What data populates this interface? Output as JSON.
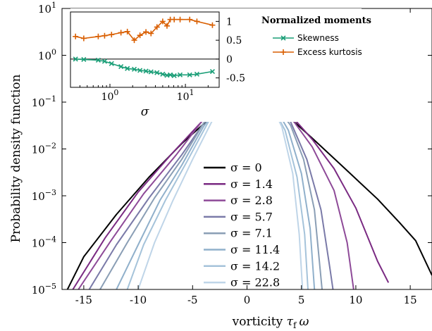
{
  "chart_data": [
    {
      "type": "line",
      "ylabel": "Probability density function",
      "xlabel_text": "vorticity ",
      "xlabel_math": "τ",
      "xlabel_sub": "f",
      "xlabel_var": "ω",
      "xlim": [
        -17,
        17
      ],
      "ylim": [
        1e-05,
        10
      ],
      "yscale": "log",
      "grid": false,
      "legend_position": "center-bottom",
      "x_ticks": [
        -15,
        -10,
        -5,
        0,
        5,
        10,
        15
      ],
      "x_tick_labels": [
        "-15",
        "-10",
        "-5",
        "0",
        "5",
        "10",
        "15"
      ],
      "y_ticks": [
        1e-05,
        0.0001,
        0.001,
        0.01,
        0.1,
        1,
        10
      ],
      "y_tick_labels": [
        {
          "base": "10",
          "exp": "−5"
        },
        {
          "base": "10",
          "exp": "−4"
        },
        {
          "base": "10",
          "exp": "−3"
        },
        {
          "base": "10",
          "exp": "−2"
        },
        {
          "base": "10",
          "exp": "−1"
        },
        {
          "base": "10",
          "exp": "0"
        },
        {
          "base": "10",
          "exp": "1"
        }
      ],
      "series": [
        {
          "name": "σ = 0",
          "sigma": 0,
          "color": "#000000",
          "points": [
            [
              -16.5,
              1e-05
            ],
            [
              -15,
              5e-05
            ],
            [
              -12,
              0.0004
            ],
            [
              -9,
              0.0025
            ],
            [
              -6,
              0.013
            ],
            [
              -3,
              0.055
            ],
            [
              -1.5,
              0.105
            ],
            [
              0,
              0.145
            ],
            [
              1.5,
              0.12
            ],
            [
              3,
              0.072
            ],
            [
              6,
              0.017
            ],
            [
              9,
              0.0038
            ],
            [
              12,
              0.00085
            ],
            [
              14,
              0.00027
            ],
            [
              15.5,
              0.00011
            ],
            [
              17,
              2e-05
            ]
          ]
        },
        {
          "name": "σ = 1.4",
          "sigma": 1.4,
          "color": "#7a2a82",
          "points": [
            [
              -16,
              1e-05
            ],
            [
              -13,
              0.00013
            ],
            [
              -10,
              0.0012
            ],
            [
              -7,
              0.0075
            ],
            [
              -4,
              0.042
            ],
            [
              -2,
              0.11
            ],
            [
              0,
              0.175
            ],
            [
              2,
              0.13
            ],
            [
              4,
              0.053
            ],
            [
              6,
              0.016
            ],
            [
              8,
              0.0038
            ],
            [
              10,
              0.00055
            ],
            [
              12,
              4e-05
            ],
            [
              13,
              1.4e-05
            ]
          ]
        },
        {
          "name": "σ = 2.8",
          "sigma": 2.8,
          "color": "#8e4a98",
          "points": [
            [
              -15.5,
              1e-05
            ],
            [
              -12.5,
              0.00011
            ],
            [
              -9.5,
              0.0011
            ],
            [
              -6.5,
              0.0075
            ],
            [
              -4,
              0.043
            ],
            [
              -2,
              0.115
            ],
            [
              0,
              0.195
            ],
            [
              2,
              0.135
            ],
            [
              4,
              0.048
            ],
            [
              6,
              0.011
            ],
            [
              8,
              0.0013
            ],
            [
              9.2,
              0.0001
            ],
            [
              9.8,
              1e-05
            ]
          ]
        },
        {
          "name": "σ = 5.7",
          "sigma": 5.7,
          "color": "#7a7aa8",
          "points": [
            [
              -14.5,
              1e-05
            ],
            [
              -12,
              9e-05
            ],
            [
              -9,
              0.0009
            ],
            [
              -6,
              0.0075
            ],
            [
              -4,
              0.035
            ],
            [
              -2,
              0.12
            ],
            [
              0,
              0.22
            ],
            [
              2,
              0.14
            ],
            [
              4,
              0.038
            ],
            [
              5.5,
              0.006
            ],
            [
              6.8,
              0.0005
            ],
            [
              7.6,
              3e-05
            ],
            [
              7.9,
              1e-05
            ]
          ]
        },
        {
          "name": "σ = 7.1",
          "sigma": 7.1,
          "color": "#8a9eb5",
          "points": [
            [
              -13.5,
              1e-05
            ],
            [
              -11,
              0.0001
            ],
            [
              -8.5,
              0.0009
            ],
            [
              -6,
              0.006
            ],
            [
              -4,
              0.035
            ],
            [
              -2,
              0.125
            ],
            [
              0,
              0.235
            ],
            [
              2,
              0.135
            ],
            [
              4,
              0.032
            ],
            [
              5.2,
              0.006
            ],
            [
              6.2,
              0.0005
            ],
            [
              6.9,
              1e-05
            ]
          ]
        },
        {
          "name": "σ = 11.4",
          "sigma": 11.4,
          "color": "#90b0cb",
          "points": [
            [
              -12,
              1e-05
            ],
            [
              -10,
              9e-05
            ],
            [
              -8,
              0.0008
            ],
            [
              -6,
              0.0045
            ],
            [
              -4,
              0.03
            ],
            [
              -2,
              0.13
            ],
            [
              0,
              0.255
            ],
            [
              2,
              0.135
            ],
            [
              3.8,
              0.025
            ],
            [
              5,
              0.003
            ],
            [
              5.8,
              0.0002
            ],
            [
              6.2,
              1e-05
            ]
          ]
        },
        {
          "name": "σ = 14.2",
          "sigma": 14.2,
          "color": "#a5c3da",
          "points": [
            [
              -11,
              1e-05
            ],
            [
              -9.5,
              9e-05
            ],
            [
              -7.5,
              0.0008
            ],
            [
              -5.5,
              0.0055
            ],
            [
              -3.5,
              0.04
            ],
            [
              -1.5,
              0.17
            ],
            [
              0,
              0.27
            ],
            [
              1.5,
              0.18
            ],
            [
              3.5,
              0.025
            ],
            [
              4.6,
              0.0025
            ],
            [
              5.3,
              0.00015
            ],
            [
              5.6,
              1e-05
            ]
          ]
        },
        {
          "name": "σ = 22.8",
          "sigma": 22.8,
          "color": "#bfd5e8",
          "points": [
            [
              -10,
              1e-05
            ],
            [
              -8.5,
              0.0001
            ],
            [
              -6.8,
              0.0008
            ],
            [
              -5,
              0.006
            ],
            [
              -3.2,
              0.04
            ],
            [
              -1.5,
              0.18
            ],
            [
              0,
              0.29
            ],
            [
              1.5,
              0.19
            ],
            [
              3.2,
              0.03
            ],
            [
              4.2,
              0.003
            ],
            [
              4.8,
              0.00015
            ],
            [
              5.1,
              1e-05
            ]
          ]
        }
      ],
      "legend_labels": [
        "σ = 0",
        "σ = 1.4",
        "σ = 2.8",
        "σ = 5.7",
        "σ = 7.1",
        "σ = 11.4",
        "σ = 14.2",
        "σ = 22.8"
      ]
    },
    {
      "type": "line",
      "xlabel": "σ",
      "xscale": "log",
      "xlim": [
        0.3,
        28
      ],
      "ylim": [
        -0.75,
        1.25
      ],
      "x_ticks": [
        1,
        10
      ],
      "x_tick_labels": [
        {
          "base": "10",
          "exp": "0"
        },
        {
          "base": "10",
          "exp": "1"
        }
      ],
      "y_ticks": [
        1,
        0.5,
        0,
        -0.5
      ],
      "y_tick_labels": [
        "1",
        "0.5",
        "0",
        "-0.5"
      ],
      "zero_line": true,
      "legend_title": "Normalized moments",
      "legend_position": "right-outside",
      "series": [
        {
          "name": "Skewness",
          "color": "#1a9e77",
          "marker": "x",
          "x": [
            0.35,
            0.45,
            0.7,
            0.85,
            1.05,
            1.4,
            1.7,
            2.1,
            2.5,
            3.0,
            3.5,
            4.2,
            5.0,
            5.7,
            6.3,
            7.1,
            8.5,
            11.4,
            14.2,
            22.8
          ],
          "y": [
            0.0,
            -0.01,
            -0.03,
            -0.06,
            -0.12,
            -0.2,
            -0.25,
            -0.27,
            -0.3,
            -0.32,
            -0.34,
            -0.36,
            -0.4,
            -0.43,
            -0.42,
            -0.44,
            -0.42,
            -0.42,
            -0.4,
            -0.33
          ]
        },
        {
          "name": "Excess kurtosis",
          "color": "#d95f02",
          "marker": "+",
          "x": [
            0.35,
            0.45,
            0.7,
            0.85,
            1.05,
            1.4,
            1.7,
            2.1,
            2.5,
            3.0,
            3.5,
            4.2,
            5.0,
            5.7,
            6.3,
            7.1,
            8.5,
            11.4,
            14.2,
            22.8
          ],
          "y": [
            0.6,
            0.55,
            0.6,
            0.62,
            0.65,
            0.7,
            0.73,
            0.5,
            0.63,
            0.72,
            0.68,
            0.85,
            1.0,
            0.88,
            1.05,
            1.05,
            1.05,
            1.05,
            1.0,
            0.9
          ]
        }
      ]
    }
  ]
}
